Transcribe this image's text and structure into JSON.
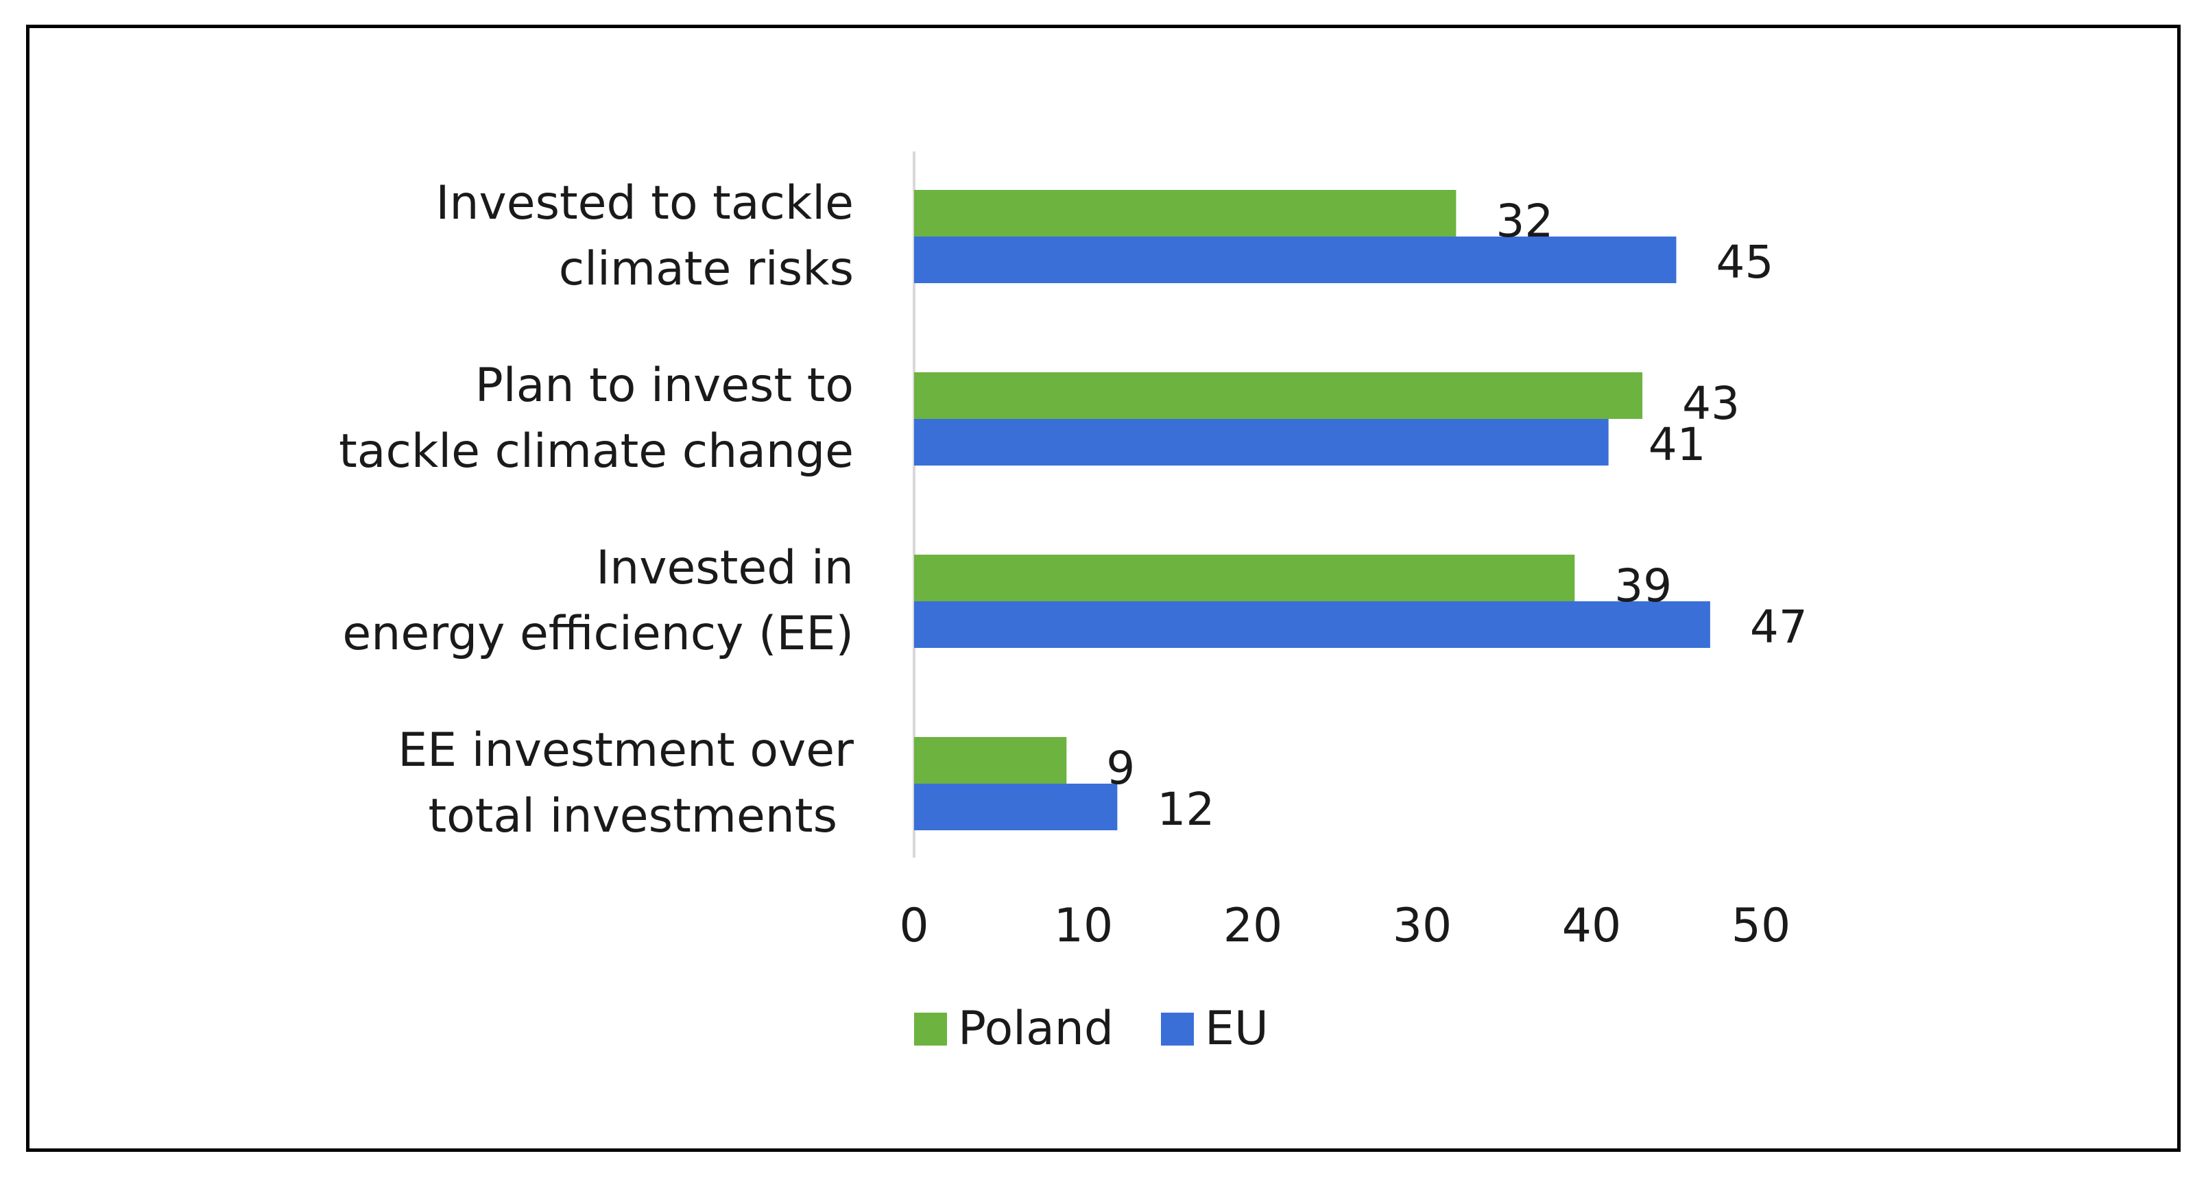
{
  "chart_data": {
    "type": "bar",
    "orientation": "horizontal",
    "categories": [
      [
        "Invested to tackle",
        "climate risks"
      ],
      [
        "Plan to invest to",
        "tackle climate change"
      ],
      [
        "Invested in",
        "energy efficiency (EE)"
      ],
      [
        "EE investment over",
        "total investments"
      ]
    ],
    "series": [
      {
        "name": "Poland",
        "color": "#6cb33f",
        "values": [
          32,
          43,
          39,
          9
        ]
      },
      {
        "name": "EU",
        "color": "#3a6fd8",
        "values": [
          45,
          41,
          47,
          12
        ]
      }
    ],
    "xlim": [
      0,
      50
    ],
    "xticks": [
      0,
      10,
      20,
      30,
      40,
      50
    ],
    "title": "",
    "xlabel": "",
    "ylabel": "",
    "grid": false,
    "legend_position": "bottom"
  }
}
